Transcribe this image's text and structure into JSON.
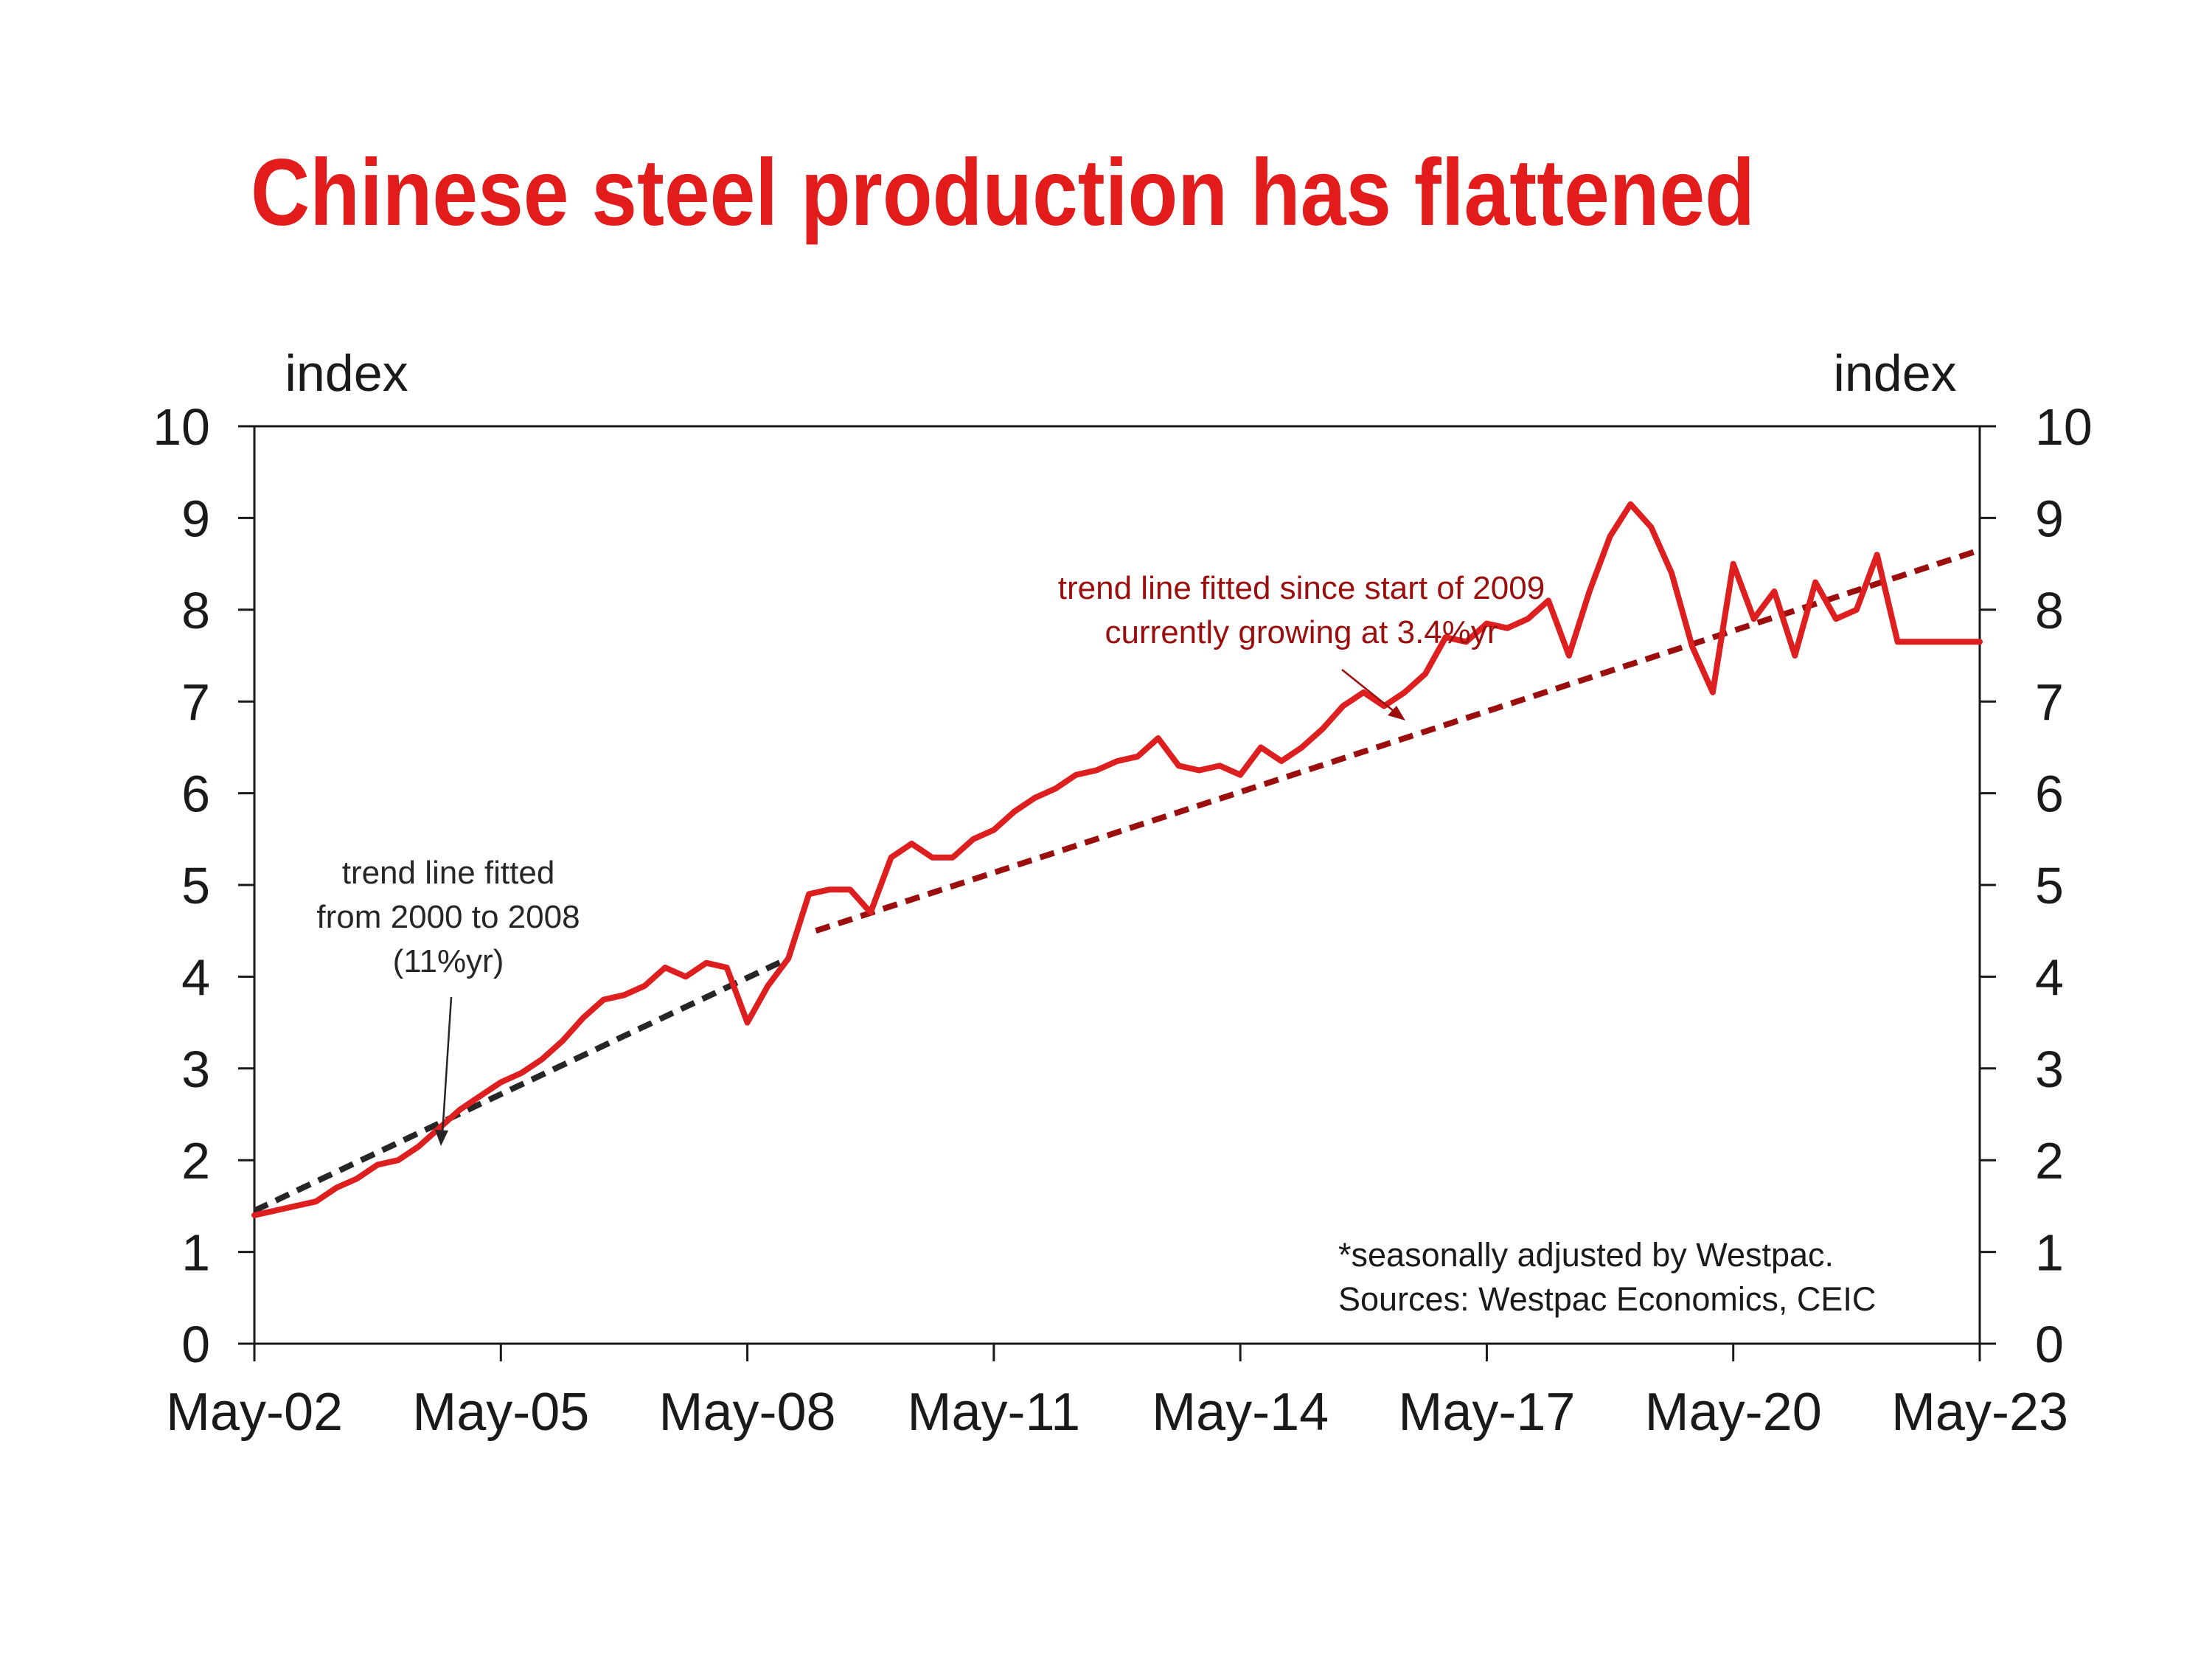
{
  "colors": {
    "title": "#e21b1b",
    "series": "#dd1f1f",
    "trend_2009": "#9b0e0e",
    "trend_2000": "#262626",
    "annotation_2009": "#9b0e0e",
    "annotation_2000": "#262626",
    "text": "#1a1a1a"
  },
  "chart_data": {
    "type": "line",
    "title": "Chinese steel production has flattened",
    "ylabel_left": "index",
    "ylabel_right": "index",
    "ylim": [
      0,
      10
    ],
    "y_ticks": [
      "0",
      "1",
      "2",
      "3",
      "4",
      "5",
      "6",
      "7",
      "8",
      "9",
      "10"
    ],
    "xlim": [
      "2002-05",
      "2023-05"
    ],
    "x_ticks": [
      {
        "date": "2002-05",
        "label": "May-02"
      },
      {
        "date": "2005-05",
        "label": "May-05"
      },
      {
        "date": "2008-05",
        "label": "May-08"
      },
      {
        "date": "2011-05",
        "label": "May-11"
      },
      {
        "date": "2014-05",
        "label": "May-14"
      },
      {
        "date": "2017-05",
        "label": "May-17"
      },
      {
        "date": "2020-05",
        "label": "May-20"
      },
      {
        "date": "2023-05",
        "label": "May-23"
      }
    ],
    "grid": false,
    "series": [
      {
        "x": [
          "2002-05",
          "2002-08",
          "2002-11",
          "2003-02",
          "2003-05",
          "2003-08",
          "2003-11",
          "2004-02",
          "2004-05",
          "2004-08",
          "2004-11",
          "2005-02",
          "2005-05",
          "2005-08",
          "2005-11",
          "2006-02",
          "2006-05",
          "2006-08",
          "2006-11",
          "2007-02",
          "2007-05",
          "2007-08",
          "2007-11",
          "2008-02",
          "2008-05",
          "2008-08",
          "2008-11",
          "2009-02",
          "2009-05",
          "2009-08",
          "2009-11",
          "2010-02",
          "2010-05",
          "2010-08",
          "2010-11",
          "2011-02",
          "2011-05",
          "2011-08",
          "2011-11",
          "2012-02",
          "2012-05",
          "2012-08",
          "2012-11",
          "2013-02",
          "2013-05",
          "2013-08",
          "2013-11",
          "2014-02",
          "2014-05",
          "2014-08",
          "2014-11",
          "2015-02",
          "2015-05",
          "2015-08",
          "2015-11",
          "2016-02",
          "2016-05",
          "2016-08",
          "2016-11",
          "2017-02",
          "2017-05",
          "2017-08",
          "2017-11",
          "2018-02",
          "2018-05",
          "2018-08",
          "2018-11",
          "2019-02",
          "2019-05",
          "2019-08",
          "2019-11",
          "2020-02",
          "2020-05",
          "2020-08",
          "2020-11",
          "2021-02",
          "2021-05",
          "2021-08",
          "2021-11",
          "2022-02",
          "2022-05",
          "2022-08",
          "2022-11",
          "2023-02",
          "2023-05"
        ],
        "values": [
          1.4,
          1.45,
          1.5,
          1.55,
          1.7,
          1.8,
          1.95,
          2.0,
          2.15,
          2.35,
          2.55,
          2.7,
          2.85,
          2.95,
          3.1,
          3.3,
          3.55,
          3.75,
          3.8,
          3.9,
          4.1,
          4.0,
          4.15,
          4.1,
          3.5,
          3.9,
          4.2,
          4.9,
          4.95,
          4.95,
          4.7,
          5.3,
          5.45,
          5.3,
          5.3,
          5.5,
          5.6,
          5.8,
          5.95,
          6.05,
          6.2,
          6.25,
          6.35,
          6.4,
          6.6,
          6.3,
          6.25,
          6.3,
          6.2,
          6.5,
          6.35,
          6.5,
          6.7,
          6.95,
          7.1,
          6.95,
          7.1,
          7.3,
          7.7,
          7.65,
          7.85,
          7.8,
          7.9,
          8.1,
          7.5,
          8.2,
          8.8,
          9.15,
          8.9,
          8.4,
          7.6,
          7.1,
          8.5,
          7.9,
          8.2,
          7.5,
          8.3,
          7.9,
          8.0,
          8.6,
          7.65,
          7.65,
          7.65,
          7.65,
          7.65
        ]
      }
    ],
    "trend_lines": [
      {
        "x": [
          "2002-05",
          "2008-11"
        ],
        "y": [
          1.45,
          4.2
        ],
        "label_lines": [
          "trend line fitted",
          "from 2000 to 2008",
          "(11%yr)"
        ]
      },
      {
        "x": [
          "2009-03",
          "2023-05"
        ],
        "y": [
          4.5,
          8.65
        ],
        "label_lines": [
          "trend line fitted since start of 2009",
          "currently growing at 3.4%yr"
        ]
      }
    ],
    "note_lines": [
      "*seasonally adjusted by Westpac.",
      "Sources: Westpac Economics, CEIC"
    ]
  }
}
